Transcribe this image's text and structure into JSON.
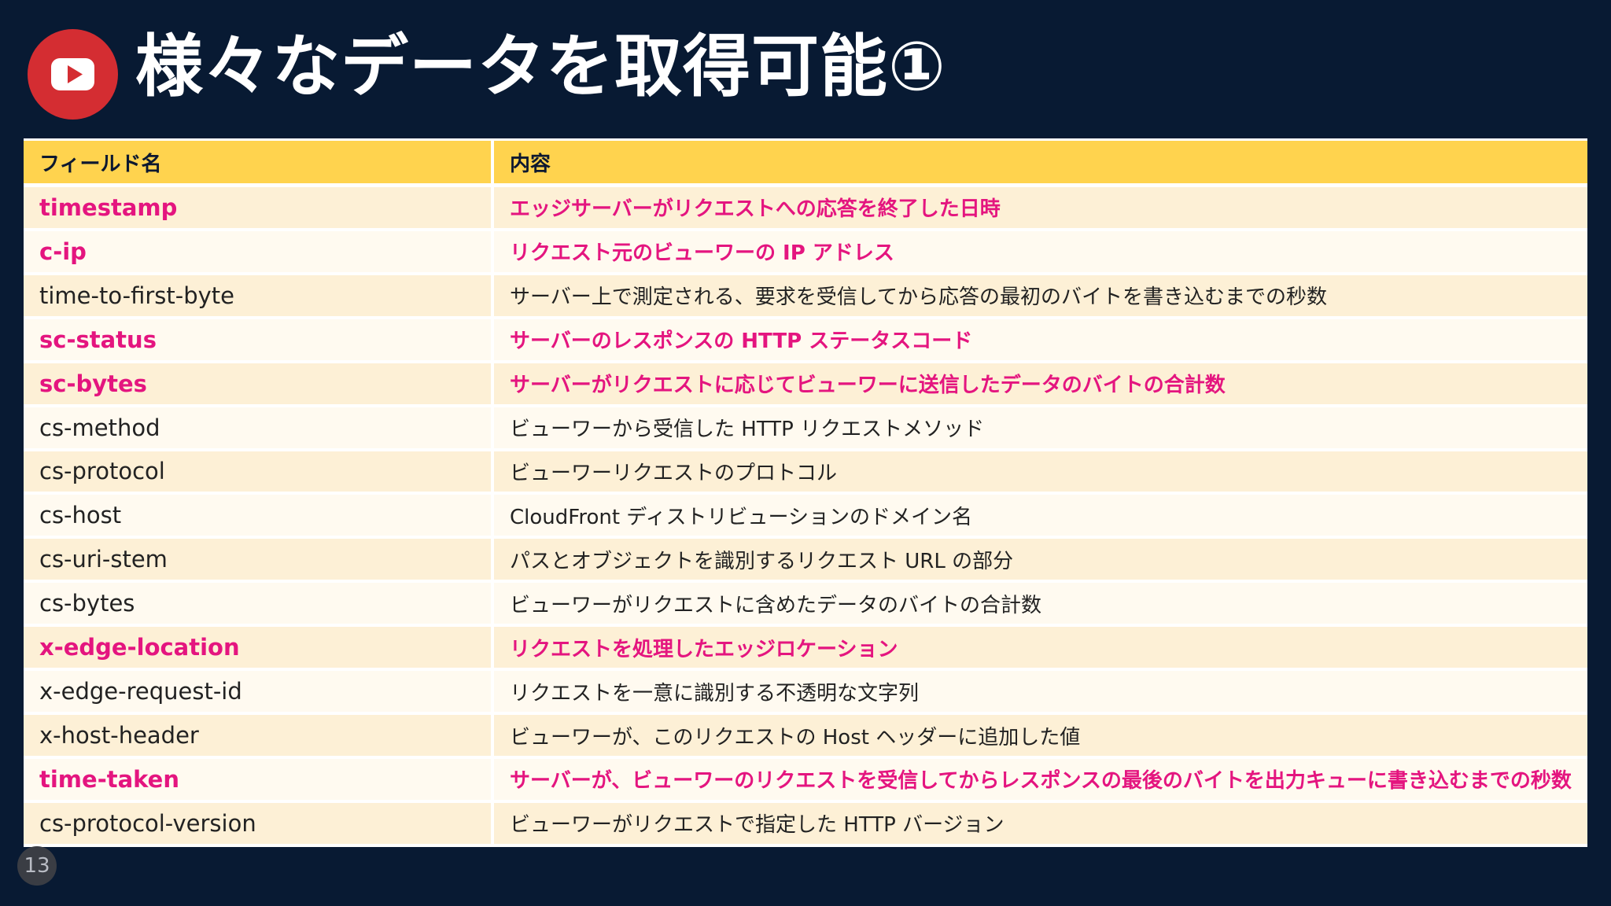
{
  "slide": {
    "title": "様々なデータを取得可能①",
    "page_number": "13",
    "logo_icon": "youtube-play-icon",
    "colors": {
      "background": "#081a33",
      "header": "#ffd34e",
      "highlight_text": "#e4157f",
      "logo": "#d42d32"
    }
  },
  "table": {
    "headers": [
      "フィールド名",
      "内容"
    ],
    "rows": [
      {
        "field": "timestamp",
        "content": "エッジサーバーがリクエストへの応答を終了した日時",
        "highlight": true
      },
      {
        "field": "c-ip",
        "content": "リクエスト元のビューワーの IP アドレス",
        "highlight": true
      },
      {
        "field": "time-to-first-byte",
        "content": "サーバー上で測定される、要求を受信してから応答の最初のバイトを書き込むまでの秒数",
        "highlight": false
      },
      {
        "field": "sc-status",
        "content": "サーバーのレスポンスの HTTP ステータスコード",
        "highlight": true
      },
      {
        "field": "sc-bytes",
        "content": "サーバーがリクエストに応じてビューワーに送信したデータのバイトの合計数",
        "highlight": true
      },
      {
        "field": "cs-method",
        "content": "ビューワーから受信した HTTP リクエストメソッド",
        "highlight": false
      },
      {
        "field": "cs-protocol",
        "content": "ビューワーリクエストのプロトコル",
        "highlight": false
      },
      {
        "field": "cs-host",
        "content": "CloudFront ディストリビューションのドメイン名",
        "highlight": false
      },
      {
        "field": "cs-uri-stem",
        "content": "パスとオブジェクトを識別するリクエスト URL の部分",
        "highlight": false
      },
      {
        "field": "cs-bytes",
        "content": "ビューワーがリクエストに含めたデータのバイトの合計数",
        "highlight": false
      },
      {
        "field": "x-edge-location",
        "content": "リクエストを処理したエッジロケーション",
        "highlight": true
      },
      {
        "field": "x-edge-request-id",
        "content": "リクエストを一意に識別する不透明な文字列",
        "highlight": false
      },
      {
        "field": "x-host-header",
        "content": "ビューワーが、このリクエストの Host ヘッダーに追加した値",
        "highlight": false
      },
      {
        "field": "time-taken",
        "content": "サーバーが、ビューワーのリクエストを受信してからレスポンスの最後のバイトを出力キューに書き込むまでの秒数",
        "highlight": true
      },
      {
        "field": "cs-protocol-version",
        "content": "ビューワーがリクエストで指定した HTTP バージョン",
        "highlight": false
      }
    ]
  }
}
